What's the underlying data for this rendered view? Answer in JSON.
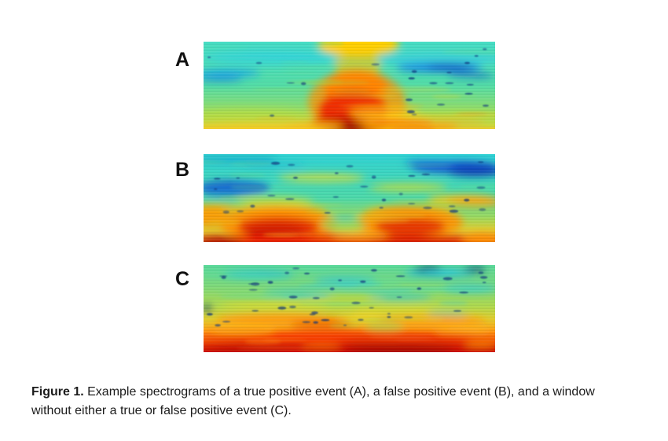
{
  "figure": {
    "panels": [
      {
        "label": "A",
        "description": "true positive event"
      },
      {
        "label": "B",
        "description": "false positive event"
      },
      {
        "label": "C",
        "description": "window without either a true or false positive event"
      }
    ],
    "caption_label": "Figure 1.",
    "caption_text": " Example spectrograms of a true positive event (A), a false positive event (B), and a window without either a true or false positive event (C)."
  },
  "colors": {
    "colormap": "jet",
    "cyan": "#2ed2de",
    "green": "#4ee0ae",
    "yellow_green": "#c2de36",
    "yellow": "#ffd010",
    "orange": "#ff9000",
    "red": "#e82800",
    "dark_red": "#b00c00",
    "blue": "#1565cc",
    "dark_navy_speck": "#07337a",
    "label_color": "#111111",
    "caption_color": "#1c1c1c",
    "background": "#ffffff"
  }
}
